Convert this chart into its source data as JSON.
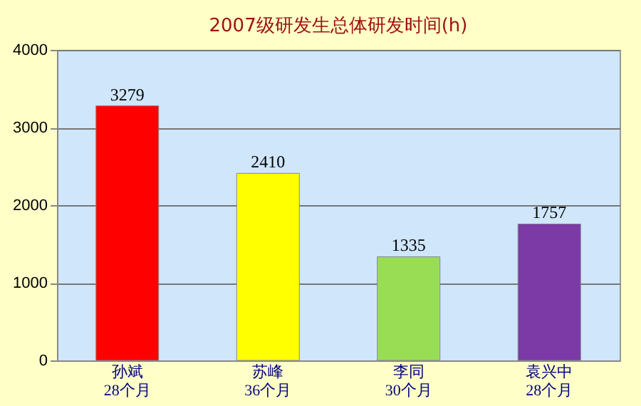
{
  "chart_data": {
    "type": "bar",
    "title": "2007级研发生总体研发时间(h)",
    "categories": [
      "孙斌\n28个月",
      "苏峰\n36个月",
      "李同\n30个月",
      "袁兴中\n28个月"
    ],
    "values": [
      3279,
      2410,
      1335,
      1757
    ],
    "colors": [
      "#ff0000",
      "#ffff00",
      "#99dd55",
      "#7b3aa6"
    ],
    "ylim": [
      0,
      4000
    ],
    "yticks": [
      0,
      1000,
      2000,
      3000,
      4000
    ],
    "grid": "y",
    "data_labels": true
  }
}
